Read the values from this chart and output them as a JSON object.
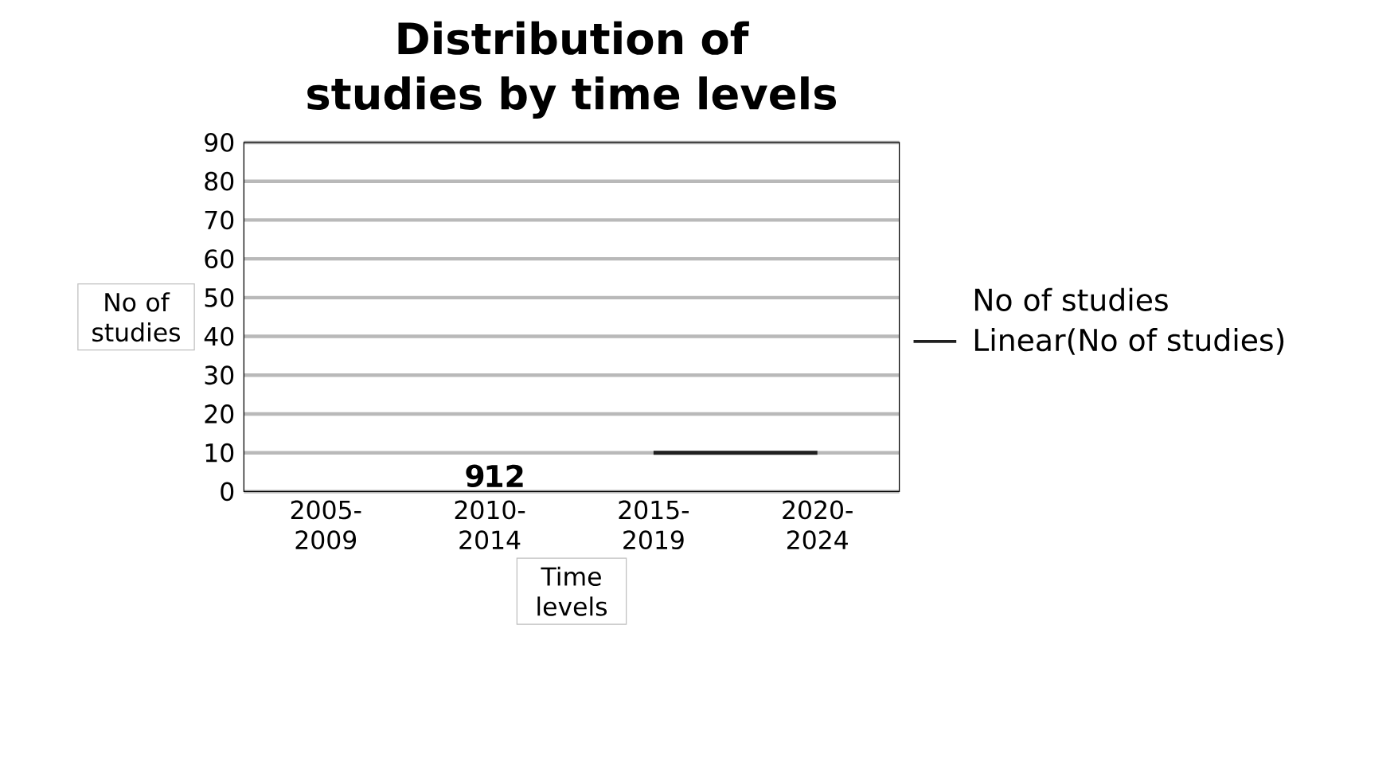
{
  "chart_data": {
    "type": "line",
    "title": "Distribution of studies by time levels",
    "xlabel": "Time levels",
    "ylabel": "No of studies",
    "categories": [
      "2005-2009",
      "2010-2014",
      "2015-2019",
      "2020-2024"
    ],
    "series": [
      {
        "name": "No of studies",
        "values": [
          null,
          null,
          null,
          null
        ]
      },
      {
        "name": "Linear(No of studies)",
        "color": "#202020",
        "values": [
          null,
          null,
          10,
          10
        ]
      }
    ],
    "annotations": [
      "9",
      "12"
    ],
    "ylim": [
      0,
      90
    ],
    "yticks": [
      0,
      10,
      20,
      30,
      40,
      50,
      60,
      70,
      80,
      90
    ],
    "grid": "y",
    "legend": "right",
    "marker": "none"
  }
}
